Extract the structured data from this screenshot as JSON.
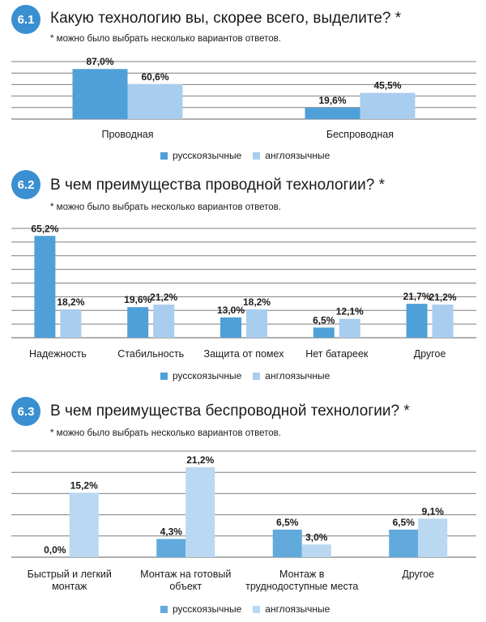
{
  "colors": {
    "badge": "#3a8fd0",
    "series_ru": "#4fa0d8",
    "series_en": "#a8cdef",
    "grid": "#7f7f7f"
  },
  "sections": [
    {
      "number": "6.1",
      "title": "Какую технологию вы, скорее всего, выделите? *",
      "note": "* можно было выбрать несколько вариантов ответов.",
      "legend": [
        "русскоязычные",
        "англоязычные"
      ]
    },
    {
      "number": "6.2",
      "title": "В чем преимущества проводной технологии? *",
      "note": "* можно было выбрать несколько вариантов ответов.",
      "legend": [
        "русскоязычные",
        "англоязычные"
      ]
    },
    {
      "number": "6.3",
      "title": "В чем преимущества беспроводной технологии? *",
      "note": "* можно было выбрать несколько вариантов ответов.",
      "legend": [
        "русскоязычные",
        "англоязычные"
      ]
    }
  ],
  "chart_data": [
    {
      "type": "bar",
      "categories": [
        "Проводная",
        "Беспроводная"
      ],
      "series": [
        {
          "name": "русскоязычные",
          "values": [
            87.0,
            19.6
          ],
          "labels": [
            "87,0%",
            "19,6%"
          ]
        },
        {
          "name": "англоязычные",
          "values": [
            60.6,
            45.5
          ],
          "labels": [
            "60,6%",
            "45,5%"
          ]
        }
      ],
      "ylim": [
        0,
        100
      ],
      "grid": true,
      "legend_position": "bottom"
    },
    {
      "type": "bar",
      "categories": [
        "Надежность",
        "Стабильность",
        "Защита от помех",
        "Нет батареек",
        "Другое"
      ],
      "series": [
        {
          "name": "русскоязычные",
          "values": [
            65.2,
            19.6,
            13.0,
            6.5,
            21.7
          ],
          "labels": [
            "65,2%",
            "19,6%",
            "13,0%",
            "6,5%",
            "21,7%"
          ]
        },
        {
          "name": "англоязычные",
          "values": [
            18.2,
            21.2,
            18.2,
            12.1,
            21.2
          ],
          "labels": [
            "18,2%",
            "21,2%",
            "18,2%",
            "12,1%",
            "21,2%"
          ]
        }
      ],
      "ylim": [
        0,
        70
      ],
      "grid": true,
      "legend_position": "bottom"
    },
    {
      "type": "bar",
      "categories": [
        [
          "Быстрый и легкий",
          "монтаж"
        ],
        [
          "Монтаж на готовый",
          "объект"
        ],
        [
          "Монтаж в",
          "труднодоступные места"
        ],
        [
          "Другое"
        ]
      ],
      "series": [
        {
          "name": "русскоязычные",
          "values": [
            0.0,
            4.3,
            6.5,
            6.5
          ],
          "labels": [
            "0,0%",
            "4,3%",
            "6,5%",
            "6,5%"
          ]
        },
        {
          "name": "англоязычные",
          "values": [
            15.2,
            21.2,
            3.0,
            9.1
          ],
          "labels": [
            "15,2%",
            "21,2%",
            "3,0%",
            "9,1%"
          ]
        }
      ],
      "ylim": [
        0,
        25
      ],
      "grid": true,
      "legend_position": "bottom"
    }
  ]
}
